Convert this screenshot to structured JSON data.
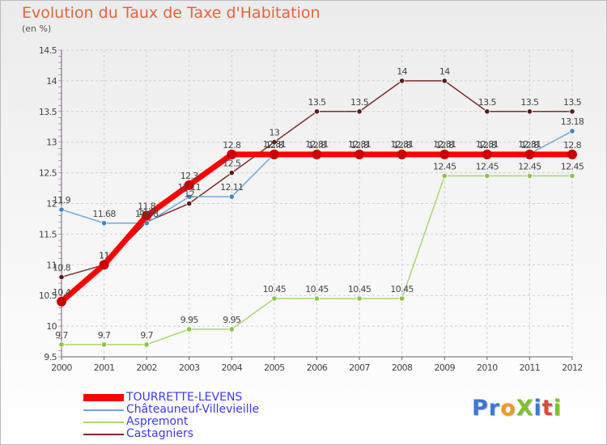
{
  "title": "Evolution du Taux de Taxe d'Habitation",
  "subtitle": "(en %)",
  "logo": {
    "text": "Proxiti",
    "letters": [
      {
        "ch": "P",
        "color": "#3b78d8"
      },
      {
        "ch": "r",
        "color": "#3b78d8"
      },
      {
        "ch": "o",
        "color": "#f29a1f"
      },
      {
        "ch": "X",
        "color": "#7fbf2a"
      },
      {
        "ch": "i",
        "color": "#3b78d8"
      },
      {
        "ch": "t",
        "color": "#e0473d"
      },
      {
        "ch": "i",
        "color": "#7fbf2a"
      }
    ]
  },
  "chart_data": {
    "type": "line",
    "x": [
      "2000",
      "2001",
      "2002",
      "2003",
      "2004",
      "2005",
      "2006",
      "2007",
      "2008",
      "2009",
      "2010",
      "2011",
      "2012"
    ],
    "ylim": [
      9.5,
      14.5
    ],
    "yticks": [
      "9.5",
      "10",
      "10.5",
      "11",
      "11.5",
      "12",
      "12.5",
      "13",
      "13.5",
      "14",
      "14.5"
    ],
    "grid": true,
    "legend_position": "bottom-left",
    "series": [
      {
        "name": "TOURRETTE-LEVENS",
        "color": "#ff0000",
        "marker": "#cc0000",
        "values": [
          10.4,
          11,
          11.8,
          12.3,
          12.8,
          12.8,
          12.8,
          12.8,
          12.8,
          12.8,
          12.8,
          12.8,
          12.8
        ],
        "labels": [
          "10.4",
          "11",
          "11.8",
          "12.3",
          "12.8",
          "12.8",
          "12.8",
          "12.8",
          "12.8",
          "12.8",
          "12.8",
          "12.8",
          "12.8"
        ]
      },
      {
        "name": "Châteauneuf-Villevieille",
        "color": "#6fa8dc",
        "marker": "#3d85c6",
        "values": [
          11.9,
          11.68,
          11.68,
          12.11,
          12.11,
          12.81,
          12.81,
          12.81,
          12.81,
          12.81,
          12.81,
          12.81,
          13.18
        ],
        "labels": [
          "11.9",
          "11.68",
          "11.68",
          "12.11",
          "12.11",
          "12.81",
          "12.81",
          "12.81",
          "12.81",
          "12.81",
          "12.81",
          "12.81",
          "13.18"
        ]
      },
      {
        "name": "Aspremont",
        "color": "#a8d86e",
        "marker": "#8bc34a",
        "values": [
          9.7,
          9.7,
          9.7,
          9.95,
          9.95,
          10.45,
          10.45,
          10.45,
          10.45,
          12.45,
          12.45,
          12.45,
          12.45
        ],
        "labels": [
          "9.7",
          "9.7",
          "9.7",
          "9.95",
          "9.95",
          "10.45",
          "10.45",
          "10.45",
          "10.45",
          "12.45",
          "12.45",
          "12.45",
          "12.45"
        ]
      },
      {
        "name": "Castagniers",
        "color": "#7f2a2a",
        "marker": "#5a1a1a",
        "values": [
          10.8,
          11,
          11.7,
          12,
          12.5,
          13,
          13.5,
          13.5,
          14,
          14,
          13.5,
          13.5,
          13.5
        ],
        "labels": [
          "10.8",
          "11",
          "11.7",
          "12",
          "12.5",
          "13",
          "13.5",
          "13.5",
          "14",
          "14",
          "13.5",
          "13.5",
          "13.5"
        ]
      }
    ]
  }
}
